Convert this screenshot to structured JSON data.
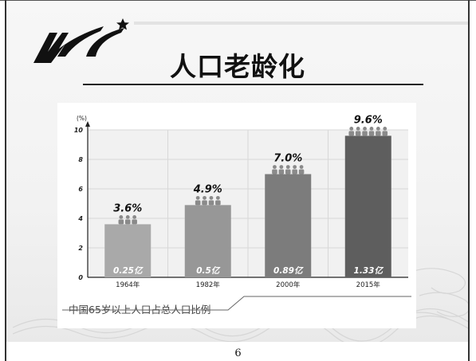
{
  "slide": {
    "title": "人口老龄化",
    "page_number": "6",
    "caption": "中国65岁以上人口占总人口比例"
  },
  "colors": {
    "title": "#111111",
    "bar": [
      "#a9a9a9",
      "#979797",
      "#7c7c7c",
      "#5e5e5e"
    ],
    "person_icon": "#8a8a8a",
    "grid": "#d8d8d8",
    "axis": "#222222"
  },
  "chart_data": {
    "type": "bar",
    "title": "",
    "xlabel": "",
    "ylabel": "(%)",
    "ylim": [
      0,
      10
    ],
    "yticks": [
      "0",
      "2",
      "4",
      "6",
      "8",
      "10"
    ],
    "categories": [
      "1964年",
      "1982年",
      "2000年",
      "2015年"
    ],
    "values": [
      3.6,
      4.9,
      7.0,
      9.6
    ],
    "value_labels": [
      "3.6%",
      "4.9%",
      "7.0%",
      "9.6%"
    ],
    "bar_labels": [
      "0.25亿",
      "0.5亿",
      "0.89亿",
      "1.33亿"
    ],
    "person_icon_counts": [
      3,
      4,
      5,
      6
    ],
    "grid": true
  }
}
